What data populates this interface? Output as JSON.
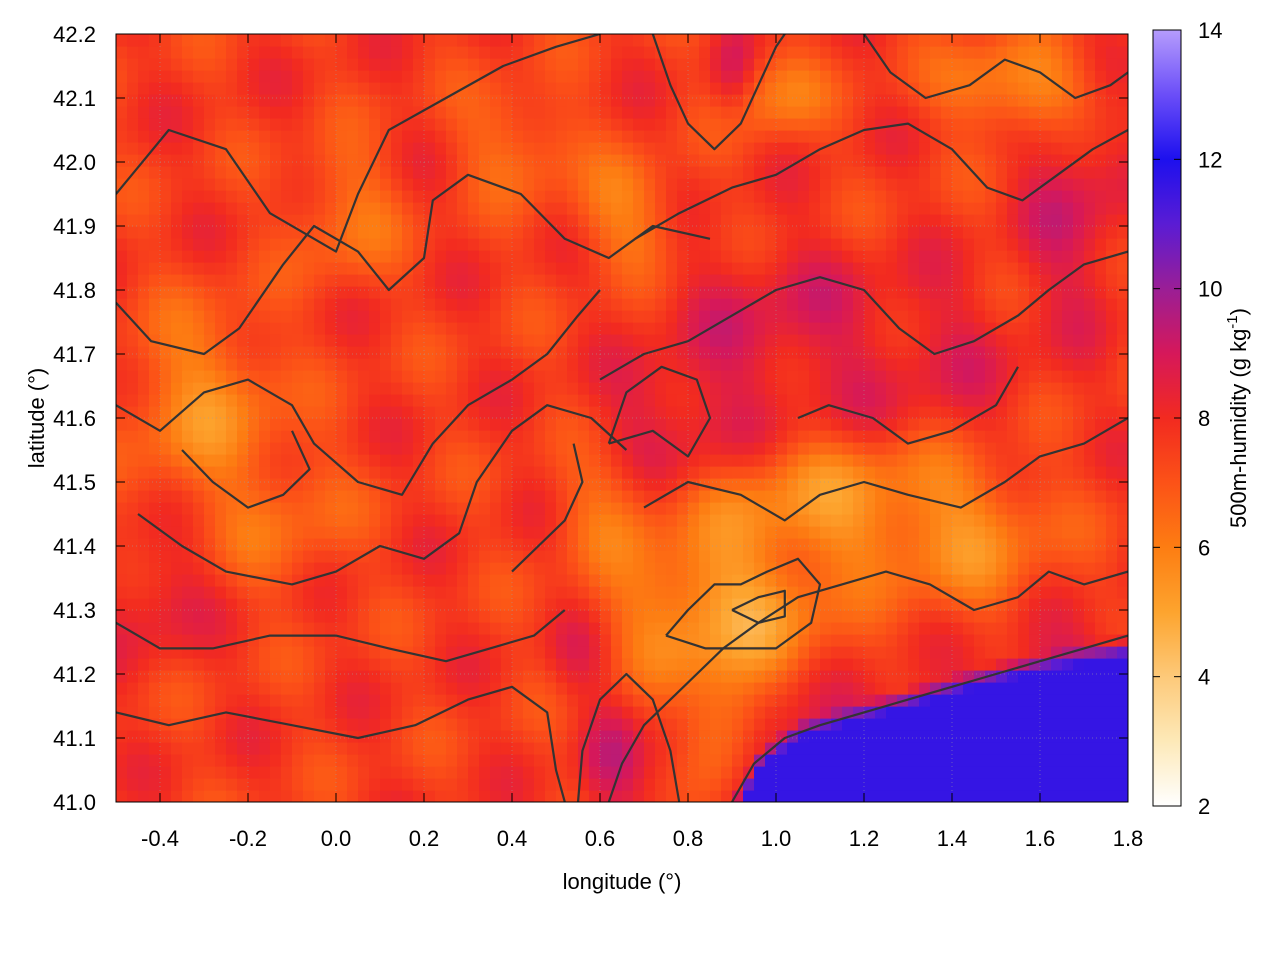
{
  "chart_data": {
    "type": "heatmap",
    "xlabel": "longitude (°)",
    "ylabel": "latitude (°)",
    "colorbar_label_main": "500m-humidity (g kg",
    "colorbar_label_sup": "-1",
    "colorbar_label_end": ")",
    "xlim": [
      -0.5,
      1.8
    ],
    "ylim": [
      41.0,
      42.2
    ],
    "clim": [
      2,
      14
    ],
    "x_ticks": [
      -0.4,
      -0.2,
      0.0,
      0.2,
      0.4,
      0.6,
      0.8,
      1.0,
      1.2,
      1.4,
      1.6,
      1.8
    ],
    "x_tick_labels": [
      "-0.4",
      "-0.2",
      "0.0",
      "0.2",
      "0.4",
      "0.6",
      "0.8",
      "1.0",
      "1.2",
      "1.4",
      "1.6",
      "1.8"
    ],
    "y_ticks": [
      41.0,
      41.1,
      41.2,
      41.3,
      41.4,
      41.5,
      41.6,
      41.7,
      41.8,
      41.9,
      42.0,
      42.1,
      42.2
    ],
    "y_tick_labels": [
      "41.0",
      "41.1",
      "41.2",
      "41.3",
      "41.4",
      "41.5",
      "41.6",
      "41.7",
      "41.8",
      "41.9",
      "42.0",
      "42.1",
      "42.2"
    ],
    "colorbar_ticks": [
      2,
      4,
      6,
      8,
      10,
      12,
      14
    ],
    "colorbar_tick_labels": [
      "2",
      "4",
      "6",
      "8",
      "10",
      "12",
      "14"
    ],
    "colormap_stops": [
      {
        "v": 2,
        "color": "#ffffff"
      },
      {
        "v": 3,
        "color": "#fde9b8"
      },
      {
        "v": 4,
        "color": "#fdc979"
      },
      {
        "v": 5,
        "color": "#fda42e"
      },
      {
        "v": 6,
        "color": "#fd7d12"
      },
      {
        "v": 7,
        "color": "#fc5217"
      },
      {
        "v": 8,
        "color": "#f22a20"
      },
      {
        "v": 9,
        "color": "#d6185a"
      },
      {
        "v": 10,
        "color": "#9a1e96"
      },
      {
        "v": 11,
        "color": "#5a1cd4"
      },
      {
        "v": 12,
        "color": "#1d10ee"
      },
      {
        "v": 13,
        "color": "#6b4ef8"
      },
      {
        "v": 14,
        "color": "#b59cfc"
      }
    ],
    "grid": true,
    "contours": true,
    "humidity_features": [
      {
        "lon": -0.3,
        "lat": 41.62,
        "value": 4.0,
        "sx": 0.1,
        "sy": 0.09
      },
      {
        "lon": -0.12,
        "lat": 41.45,
        "value": 5.5,
        "sx": 0.09,
        "sy": 0.07
      },
      {
        "lon": 0.02,
        "lat": 41.92,
        "value": 5.0,
        "sx": 0.07,
        "sy": 0.06
      },
      {
        "lon": 0.42,
        "lat": 42.03,
        "value": 5.2,
        "sx": 0.08,
        "sy": 0.05
      },
      {
        "lon": 0.66,
        "lat": 41.92,
        "value": 4.6,
        "sx": 0.07,
        "sy": 0.05
      },
      {
        "lon": 1.0,
        "lat": 42.11,
        "value": 4.5,
        "sx": 0.06,
        "sy": 0.04
      },
      {
        "lon": 1.55,
        "lat": 42.12,
        "value": 3.4,
        "sx": 0.1,
        "sy": 0.04
      },
      {
        "lon": 0.88,
        "lat": 41.3,
        "value": 2.5,
        "sx": 0.14,
        "sy": 0.07
      },
      {
        "lon": 1.12,
        "lat": 41.46,
        "value": 3.6,
        "sx": 0.18,
        "sy": 0.06
      },
      {
        "lon": 1.42,
        "lat": 41.42,
        "value": 4.2,
        "sx": 0.12,
        "sy": 0.07
      },
      {
        "lon": 0.88,
        "lat": 41.12,
        "value": 3.2,
        "sx": 0.05,
        "sy": 0.06
      },
      {
        "lon": 0.62,
        "lat": 41.45,
        "value": 5.2,
        "sx": 0.07,
        "sy": 0.05
      },
      {
        "lon": 0.78,
        "lat": 41.6,
        "value": 9.8,
        "sx": 0.1,
        "sy": 0.06
      },
      {
        "lon": 1.0,
        "lat": 41.74,
        "value": 9.8,
        "sx": 0.14,
        "sy": 0.08
      },
      {
        "lon": 1.35,
        "lat": 41.7,
        "value": 9.2,
        "sx": 0.14,
        "sy": 0.08
      },
      {
        "lon": 1.68,
        "lat": 41.92,
        "value": 10.0,
        "sx": 0.07,
        "sy": 0.1
      },
      {
        "lon": 0.9,
        "lat": 42.14,
        "value": 9.6,
        "sx": 0.03,
        "sy": 0.04
      },
      {
        "lon": -0.42,
        "lat": 41.32,
        "value": 9.4,
        "sx": 0.07,
        "sy": 0.06
      },
      {
        "lon": 0.62,
        "lat": 41.05,
        "value": 9.8,
        "sx": 0.04,
        "sy": 0.06
      },
      {
        "lon": 0.55,
        "lat": 41.22,
        "value": 9.0,
        "sx": 0.04,
        "sy": 0.04
      },
      {
        "lon": 1.3,
        "lat": 41.06,
        "value": 12.2,
        "sx": 0.26,
        "sy": 0.06
      },
      {
        "lon": 1.7,
        "lat": 41.16,
        "value": 11.5,
        "sx": 0.12,
        "sy": 0.06
      }
    ],
    "sea_boundary": [
      {
        "lon": 0.9,
        "lat": 41.0
      },
      {
        "lon": 0.96,
        "lat": 41.08
      },
      {
        "lon": 1.05,
        "lat": 41.13
      },
      {
        "lon": 1.2,
        "lat": 41.16
      },
      {
        "lon": 1.35,
        "lat": 41.19
      },
      {
        "lon": 1.5,
        "lat": 41.22
      },
      {
        "lon": 1.65,
        "lat": 41.24
      },
      {
        "lon": 1.8,
        "lat": 41.26
      }
    ],
    "contour_lines": [
      [
        [
          -0.5,
          41.95
        ],
        [
          -0.38,
          42.05
        ],
        [
          -0.25,
          42.02
        ],
        [
          -0.15,
          41.92
        ],
        [
          0.0,
          41.86
        ],
        [
          0.05,
          41.95
        ],
        [
          0.12,
          42.05
        ],
        [
          0.25,
          42.1
        ],
        [
          0.38,
          42.15
        ],
        [
          0.5,
          42.18
        ],
        [
          0.6,
          42.2
        ]
      ],
      [
        [
          -0.5,
          41.78
        ],
        [
          -0.42,
          41.72
        ],
        [
          -0.3,
          41.7
        ],
        [
          -0.22,
          41.74
        ],
        [
          -0.12,
          41.84
        ],
        [
          -0.05,
          41.9
        ],
        [
          0.05,
          41.86
        ],
        [
          0.12,
          41.8
        ],
        [
          0.2,
          41.85
        ],
        [
          0.22,
          41.94
        ],
        [
          0.3,
          41.98
        ],
        [
          0.42,
          41.95
        ],
        [
          0.52,
          41.88
        ],
        [
          0.62,
          41.85
        ],
        [
          0.72,
          41.9
        ],
        [
          0.85,
          41.88
        ]
      ],
      [
        [
          -0.5,
          41.62
        ],
        [
          -0.4,
          41.58
        ],
        [
          -0.3,
          41.64
        ],
        [
          -0.2,
          41.66
        ],
        [
          -0.1,
          41.62
        ],
        [
          -0.05,
          41.56
        ],
        [
          0.05,
          41.5
        ],
        [
          0.15,
          41.48
        ],
        [
          0.22,
          41.56
        ],
        [
          0.3,
          41.62
        ],
        [
          0.4,
          41.66
        ],
        [
          0.48,
          41.7
        ],
        [
          0.55,
          41.76
        ],
        [
          0.6,
          41.8
        ]
      ],
      [
        [
          -0.45,
          41.45
        ],
        [
          -0.35,
          41.4
        ],
        [
          -0.25,
          41.36
        ],
        [
          -0.1,
          41.34
        ],
        [
          0.0,
          41.36
        ],
        [
          0.1,
          41.4
        ],
        [
          0.2,
          41.38
        ],
        [
          0.28,
          41.42
        ],
        [
          0.32,
          41.5
        ],
        [
          0.4,
          41.58
        ],
        [
          0.48,
          41.62
        ],
        [
          0.58,
          41.6
        ],
        [
          0.66,
          41.55
        ]
      ],
      [
        [
          -0.5,
          41.28
        ],
        [
          -0.4,
          41.24
        ],
        [
          -0.28,
          41.24
        ],
        [
          -0.15,
          41.26
        ],
        [
          0.0,
          41.26
        ],
        [
          0.12,
          41.24
        ],
        [
          0.25,
          41.22
        ],
        [
          0.35,
          41.24
        ],
        [
          0.45,
          41.26
        ],
        [
          0.52,
          41.3
        ]
      ],
      [
        [
          -0.5,
          41.14
        ],
        [
          -0.38,
          41.12
        ],
        [
          -0.25,
          41.14
        ],
        [
          -0.1,
          41.12
        ],
        [
          0.05,
          41.1
        ],
        [
          0.18,
          41.12
        ],
        [
          0.3,
          41.16
        ],
        [
          0.4,
          41.18
        ],
        [
          0.48,
          41.14
        ],
        [
          0.5,
          41.05
        ],
        [
          0.52,
          41.0
        ]
      ],
      [
        [
          0.55,
          41.0
        ],
        [
          0.56,
          41.08
        ],
        [
          0.6,
          41.16
        ],
        [
          0.66,
          41.2
        ],
        [
          0.72,
          41.16
        ],
        [
          0.76,
          41.08
        ],
        [
          0.78,
          41.0
        ]
      ],
      [
        [
          0.62,
          41.0
        ],
        [
          0.65,
          41.06
        ],
        [
          0.7,
          41.12
        ],
        [
          0.76,
          41.16
        ],
        [
          0.82,
          41.2
        ],
        [
          0.88,
          41.24
        ],
        [
          0.96,
          41.28
        ],
        [
          1.05,
          41.32
        ],
        [
          1.15,
          41.34
        ],
        [
          1.25,
          41.36
        ],
        [
          1.35,
          41.34
        ],
        [
          1.45,
          41.3
        ],
        [
          1.55,
          41.32
        ],
        [
          1.62,
          41.36
        ],
        [
          1.7,
          41.34
        ],
        [
          1.8,
          41.36
        ]
      ],
      [
        [
          0.75,
          41.26
        ],
        [
          0.8,
          41.3
        ],
        [
          0.86,
          41.34
        ],
        [
          0.92,
          41.34
        ],
        [
          0.98,
          41.36
        ],
        [
          1.05,
          41.38
        ],
        [
          1.1,
          41.34
        ],
        [
          1.08,
          41.28
        ],
        [
          1.0,
          41.24
        ],
        [
          0.92,
          41.24
        ],
        [
          0.84,
          41.24
        ],
        [
          0.75,
          41.26
        ]
      ],
      [
        [
          0.9,
          41.3
        ],
        [
          0.96,
          41.32
        ],
        [
          1.02,
          41.33
        ],
        [
          1.02,
          41.29
        ],
        [
          0.96,
          41.28
        ],
        [
          0.9,
          41.3
        ]
      ],
      [
        [
          0.7,
          41.46
        ],
        [
          0.8,
          41.5
        ],
        [
          0.92,
          41.48
        ],
        [
          1.02,
          41.44
        ],
        [
          1.1,
          41.48
        ],
        [
          1.2,
          41.5
        ],
        [
          1.3,
          41.48
        ],
        [
          1.42,
          41.46
        ],
        [
          1.52,
          41.5
        ],
        [
          1.6,
          41.54
        ],
        [
          1.7,
          41.56
        ],
        [
          1.8,
          41.6
        ]
      ],
      [
        [
          0.6,
          41.66
        ],
        [
          0.7,
          41.7
        ],
        [
          0.8,
          41.72
        ],
        [
          0.9,
          41.76
        ],
        [
          1.0,
          41.8
        ],
        [
          1.1,
          41.82
        ],
        [
          1.2,
          41.8
        ],
        [
          1.28,
          41.74
        ],
        [
          1.36,
          41.7
        ],
        [
          1.45,
          41.72
        ],
        [
          1.55,
          41.76
        ],
        [
          1.62,
          41.8
        ],
        [
          1.7,
          41.84
        ],
        [
          1.8,
          41.86
        ]
      ],
      [
        [
          0.68,
          41.88
        ],
        [
          0.78,
          41.92
        ],
        [
          0.9,
          41.96
        ],
        [
          1.0,
          41.98
        ],
        [
          1.1,
          42.02
        ],
        [
          1.2,
          42.05
        ],
        [
          1.3,
          42.06
        ],
        [
          1.4,
          42.02
        ],
        [
          1.48,
          41.96
        ],
        [
          1.56,
          41.94
        ],
        [
          1.64,
          41.98
        ],
        [
          1.72,
          42.02
        ],
        [
          1.8,
          42.05
        ]
      ],
      [
        [
          0.72,
          42.2
        ],
        [
          0.76,
          42.12
        ],
        [
          0.8,
          42.06
        ],
        [
          0.86,
          42.02
        ],
        [
          0.92,
          42.06
        ],
        [
          0.96,
          42.12
        ],
        [
          1.0,
          42.18
        ],
        [
          1.02,
          42.2
        ]
      ],
      [
        [
          1.2,
          42.2
        ],
        [
          1.26,
          42.14
        ],
        [
          1.34,
          42.1
        ],
        [
          1.44,
          42.12
        ],
        [
          1.52,
          42.16
        ],
        [
          1.6,
          42.14
        ],
        [
          1.68,
          42.1
        ],
        [
          1.76,
          42.12
        ],
        [
          1.8,
          42.14
        ]
      ],
      [
        [
          0.9,
          41.0
        ],
        [
          0.95,
          41.06
        ],
        [
          1.02,
          41.1
        ],
        [
          1.1,
          41.12
        ],
        [
          1.2,
          41.14
        ],
        [
          1.3,
          41.16
        ],
        [
          1.4,
          41.18
        ],
        [
          1.5,
          41.2
        ],
        [
          1.6,
          41.22
        ],
        [
          1.7,
          41.24
        ],
        [
          1.8,
          41.26
        ]
      ],
      [
        [
          0.62,
          41.56
        ],
        [
          0.72,
          41.58
        ],
        [
          0.8,
          41.54
        ],
        [
          0.85,
          41.6
        ],
        [
          0.82,
          41.66
        ],
        [
          0.74,
          41.68
        ],
        [
          0.66,
          41.64
        ],
        [
          0.62,
          41.56
        ]
      ],
      [
        [
          1.05,
          41.6
        ],
        [
          1.12,
          41.62
        ],
        [
          1.22,
          41.6
        ],
        [
          1.3,
          41.56
        ],
        [
          1.4,
          41.58
        ],
        [
          1.5,
          41.62
        ],
        [
          1.55,
          41.68
        ]
      ],
      [
        [
          -0.35,
          41.55
        ],
        [
          -0.28,
          41.5
        ],
        [
          -0.2,
          41.46
        ],
        [
          -0.12,
          41.48
        ],
        [
          -0.06,
          41.52
        ],
        [
          -0.1,
          41.58
        ]
      ],
      [
        [
          0.4,
          41.36
        ],
        [
          0.46,
          41.4
        ],
        [
          0.52,
          41.44
        ],
        [
          0.56,
          41.5
        ],
        [
          0.54,
          41.56
        ]
      ]
    ]
  }
}
